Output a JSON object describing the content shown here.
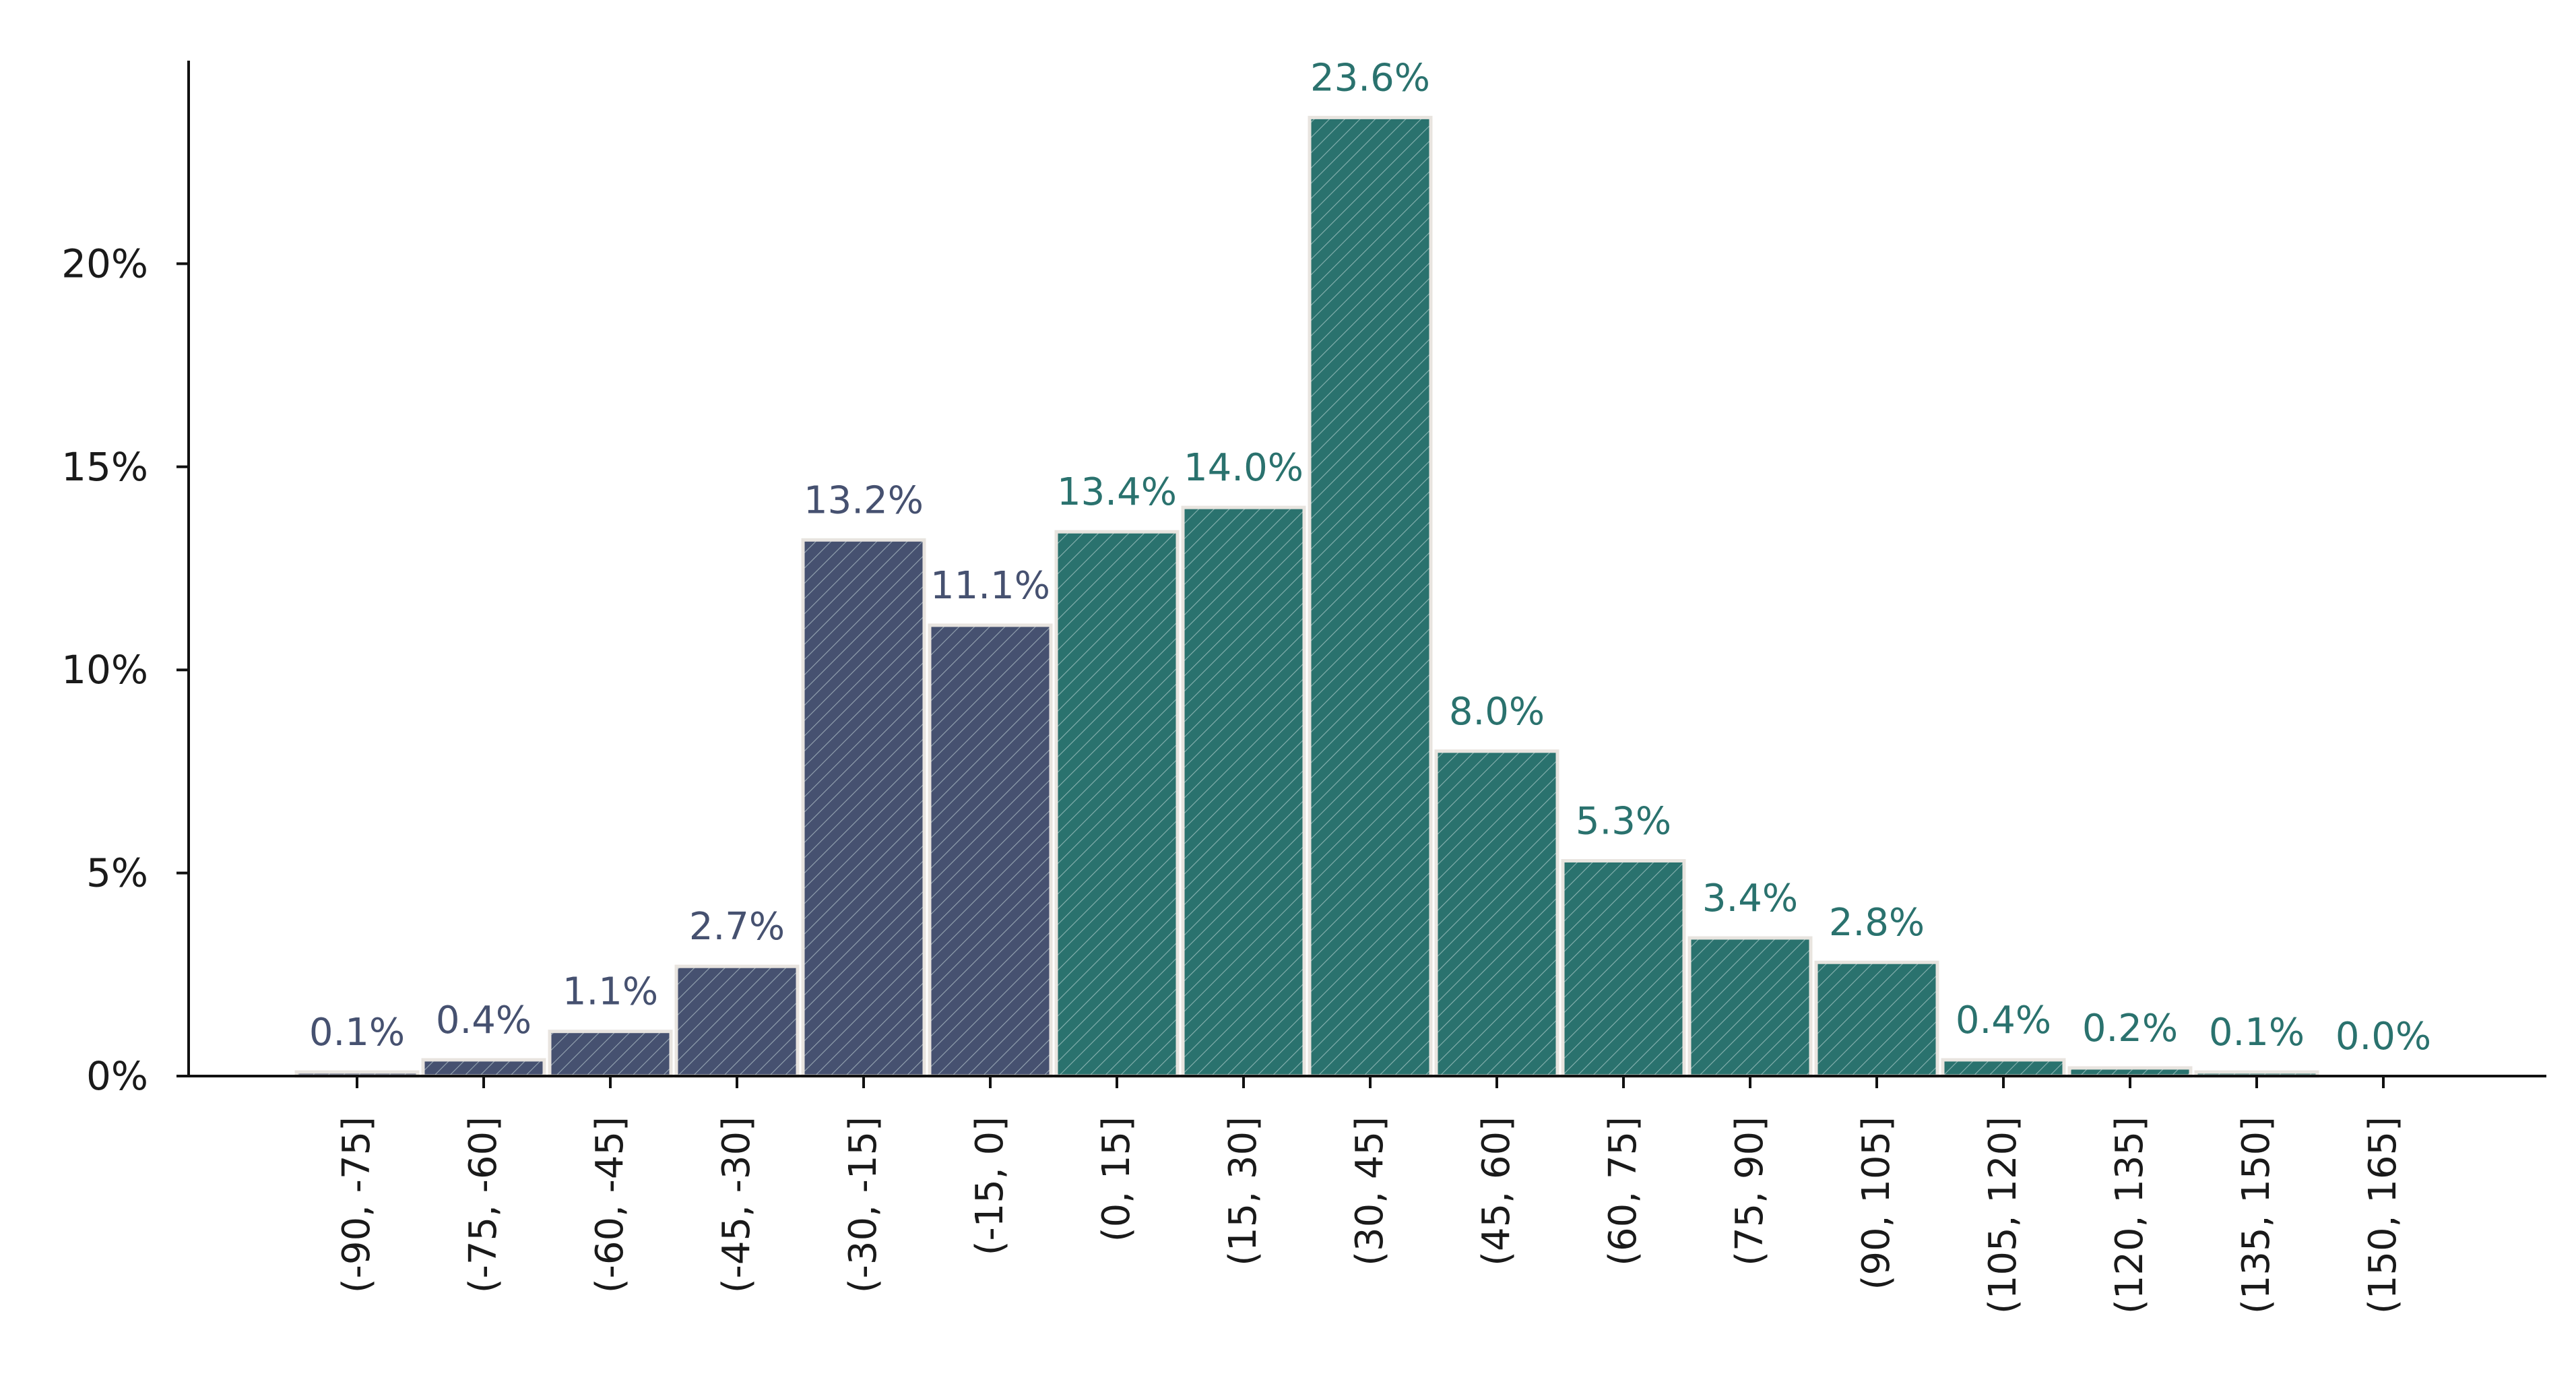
{
  "chart_data": {
    "type": "bar",
    "title": "",
    "xlabel": "",
    "ylabel": "",
    "ylim": [
      0,
      25
    ],
    "yticks": [
      0,
      5,
      10,
      15,
      20
    ],
    "ytick_labels": [
      "0%",
      "5%",
      "10%",
      "15%",
      "20%"
    ],
    "categories": [
      "(-90, -75]",
      "(-75, -60]",
      "(-60, -45]",
      "(-45, -30]",
      "(-30, -15]",
      "(-15, 0]",
      "(0, 15]",
      "(15, 30]",
      "(30, 45]",
      "(45, 60]",
      "(60, 75]",
      "(75, 90]",
      "(90, 105]",
      "(105, 120]",
      "(120, 135]",
      "(135, 150]",
      "(150, 165]"
    ],
    "values": [
      0.1,
      0.4,
      1.1,
      2.7,
      13.2,
      11.1,
      13.4,
      14.0,
      23.6,
      8.0,
      5.3,
      3.4,
      2.8,
      0.4,
      0.2,
      0.1,
      0.0
    ],
    "value_labels": [
      "0.1%",
      "0.4%",
      "1.1%",
      "2.7%",
      "13.2%",
      "11.1%",
      "13.4%",
      "14.0%",
      "23.6%",
      "8.0%",
      "5.3%",
      "3.4%",
      "2.8%",
      "0.4%",
      "0.2%",
      "0.1%",
      "0.0%"
    ],
    "groups": [
      "negative",
      "negative",
      "negative",
      "negative",
      "negative",
      "negative",
      "positive",
      "positive",
      "positive",
      "positive",
      "positive",
      "positive",
      "positive",
      "positive",
      "positive",
      "positive",
      "positive"
    ],
    "colors": {
      "negative": "#465170",
      "positive": "#2a726e",
      "bar_edge": "#e8e4df",
      "hatch": "#d6e8e6",
      "axis": "#111111",
      "tick_text": "#1a1a1a"
    },
    "grid": false,
    "legend": "none"
  }
}
